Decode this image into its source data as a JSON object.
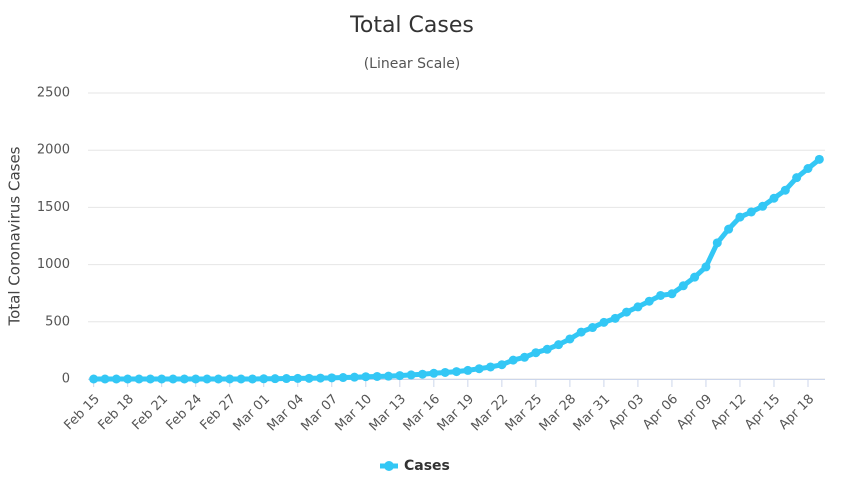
{
  "chart_data": {
    "type": "line",
    "title": "Total Cases",
    "subtitle": "(Linear Scale)",
    "y_label": "Total Coronavirus Cases",
    "categories": [
      "Feb 15",
      null,
      null,
      "Feb 18",
      null,
      null,
      "Feb 21",
      null,
      null,
      "Feb 24",
      null,
      null,
      "Feb 27",
      null,
      null,
      "Mar 01",
      null,
      null,
      "Mar 04",
      null,
      null,
      "Mar 07",
      null,
      null,
      "Mar 10",
      null,
      null,
      "Mar 13",
      null,
      null,
      "Mar 16",
      null,
      null,
      "Mar 19",
      null,
      null,
      "Mar 22",
      null,
      null,
      "Mar 25",
      null,
      null,
      "Mar 28",
      null,
      null,
      "Mar 31",
      null,
      null,
      "Apr 03",
      null,
      null,
      "Apr 06",
      null,
      null,
      "Apr 09",
      null,
      null,
      "Apr 12",
      null,
      null,
      "Apr 15",
      null,
      null,
      "Apr 18",
      null
    ],
    "series": [
      {
        "name": "Cases",
        "color": "#33c7f5",
        "values": [
          0,
          0,
          0,
          0,
          0,
          0,
          0,
          0,
          0,
          0,
          0,
          0,
          0,
          0,
          0,
          2,
          3,
          4,
          5,
          6,
          8,
          10,
          13,
          16,
          20,
          22,
          25,
          30,
          36,
          42,
          50,
          57,
          65,
          75,
          90,
          105,
          125,
          165,
          190,
          230,
          260,
          300,
          350,
          410,
          450,
          495,
          530,
          585,
          630,
          680,
          730,
          745,
          815,
          890,
          980,
          1190,
          1310,
          1415,
          1460,
          1510,
          1580,
          1650,
          1760,
          1840,
          1920
        ]
      }
    ],
    "ylim": [
      0,
      2500
    ],
    "yticks": [
      0,
      500,
      1000,
      1500,
      2000,
      2500
    ],
    "grid": true,
    "legend": "bottom"
  }
}
